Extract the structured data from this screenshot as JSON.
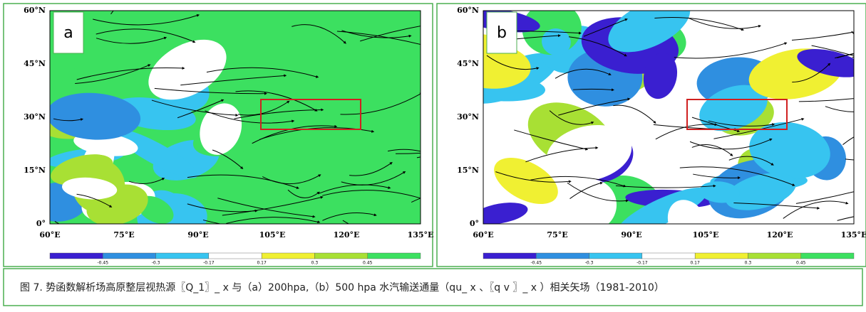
{
  "figure": {
    "panels": [
      {
        "label": "a",
        "background": "#3ce060",
        "yticks": [
          "60°N",
          "45°N",
          "30°N",
          "15°N",
          "0°"
        ],
        "xticks": [
          "60°E",
          "75°E",
          "90°E",
          "105°E",
          "120°E",
          "135°E"
        ]
      },
      {
        "label": "b",
        "background": "#ffffff",
        "yticks": [
          "60°N",
          "45°N",
          "30°N",
          "15°N",
          "0°"
        ],
        "xticks": [
          "60°E",
          "75°E",
          "90°E",
          "105°E",
          "120°E",
          "135°E"
        ]
      }
    ],
    "colorbar": {
      "colors": [
        "#3a1fd0",
        "#2f8fe0",
        "#37c4f0",
        "#ffffff",
        "#f0f032",
        "#a8e034",
        "#3ce060"
      ],
      "labels": [
        "-0.45",
        "-0.3",
        "-0.17",
        "0.17",
        "0.3",
        "0.45"
      ]
    },
    "caption": "图 7. 势函数解析场高原整层视热源〖Q_1〗_ x 与（a）200hpa,（b）500 hpa 水汽输送通量（qu_ x 、〖q v 〗_ x ）相关矢场（1981-2010）"
  }
}
